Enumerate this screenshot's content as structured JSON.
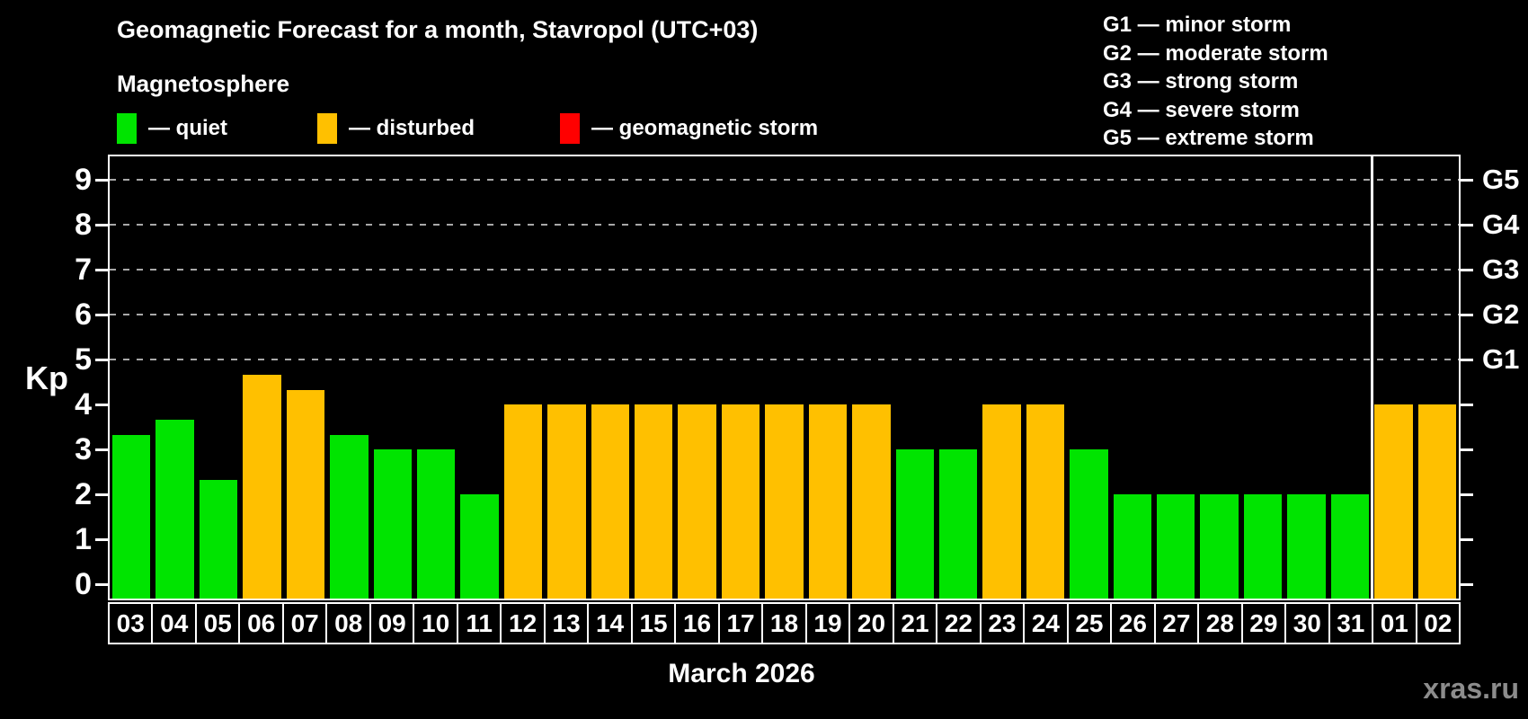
{
  "title": "Geomagnetic Forecast for a month, Stavropol (UTC+03)",
  "subtitle": "Magnetosphere",
  "legend": [
    {
      "key": "quiet",
      "label": "— quiet"
    },
    {
      "key": "disturbed",
      "label": "— disturbed"
    },
    {
      "key": "storm",
      "label": "— geomagnetic storm"
    }
  ],
  "storm_scale": [
    "G1 — minor storm",
    "G2 — moderate storm",
    "G3 — strong storm",
    "G4 — severe storm",
    "G5 — extreme storm"
  ],
  "colors": {
    "quiet": "#00e400",
    "disturbed": "#ffc000",
    "storm": "#ff0000",
    "grid": "#a8a8a8",
    "axis": "#ffffff",
    "watermark": "#8c8c8c"
  },
  "watermark": "xras.ru",
  "chart_data": {
    "type": "bar",
    "title": "Geomagnetic Forecast for a month, Stavropol (UTC+03)",
    "ylabel": "Kp",
    "xlabel": "March 2026",
    "ylim": [
      0,
      9
    ],
    "yticks": [
      0,
      1,
      2,
      3,
      4,
      5,
      6,
      7,
      8,
      9
    ],
    "gridlines_at": [
      5,
      6,
      7,
      8,
      9
    ],
    "grid": "dashed horizontal at Kp 5-9",
    "legend_position": "top-left",
    "right_axis": [
      {
        "value": 5,
        "label": "G1"
      },
      {
        "value": 6,
        "label": "G2"
      },
      {
        "value": 7,
        "label": "G3"
      },
      {
        "value": 8,
        "label": "G4"
      },
      {
        "value": 9,
        "label": "G5"
      }
    ],
    "categories": [
      "03",
      "04",
      "05",
      "06",
      "07",
      "08",
      "09",
      "10",
      "11",
      "12",
      "13",
      "14",
      "15",
      "16",
      "17",
      "18",
      "19",
      "20",
      "21",
      "22",
      "23",
      "24",
      "25",
      "26",
      "27",
      "28",
      "29",
      "30",
      "31",
      "01",
      "02"
    ],
    "values": [
      3.33,
      3.67,
      2.33,
      4.67,
      4.33,
      3.33,
      3,
      3,
      2,
      4,
      4,
      4,
      4,
      4,
      4,
      4,
      4,
      4,
      3,
      3,
      4,
      4,
      3,
      2,
      2,
      2,
      2,
      2,
      2,
      4,
      4
    ],
    "status": [
      "quiet",
      "quiet",
      "quiet",
      "disturbed",
      "disturbed",
      "quiet",
      "quiet",
      "quiet",
      "quiet",
      "disturbed",
      "disturbed",
      "disturbed",
      "disturbed",
      "disturbed",
      "disturbed",
      "disturbed",
      "disturbed",
      "disturbed",
      "quiet",
      "quiet",
      "disturbed",
      "disturbed",
      "quiet",
      "quiet",
      "quiet",
      "quiet",
      "quiet",
      "quiet",
      "quiet",
      "disturbed",
      "disturbed"
    ],
    "month_divider_after_index": 28
  }
}
